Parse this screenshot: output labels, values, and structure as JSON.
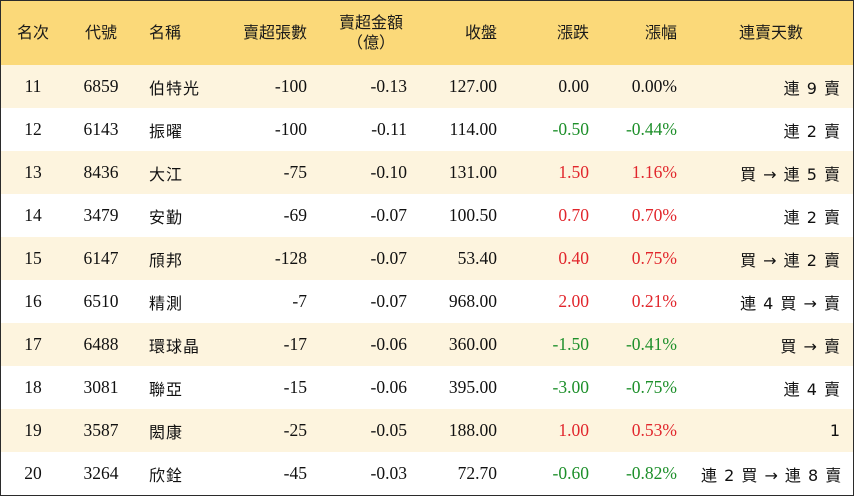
{
  "table": {
    "headers": {
      "rank": "名次",
      "code": "代號",
      "name": "名稱",
      "sell_lots": "賣超張數",
      "sell_amount_line1": "賣超金額",
      "sell_amount_line2": "（億）",
      "close": "收盤",
      "change": "漲跌",
      "change_pct": "漲幅",
      "streak": "連賣天數"
    },
    "colors": {
      "header_bg": "#fbd979",
      "odd_row_bg": "#fdf4de",
      "even_row_bg": "#ffffff",
      "up": "#e1262c",
      "down": "#1d8f2a",
      "flat": "#111111"
    },
    "rows": [
      {
        "rank": "11",
        "code": "6859",
        "name": "伯特光",
        "sell_lots": "-100",
        "sell_amount": "-0.13",
        "close": "127.00",
        "change": "0.00",
        "change_pct": "0.00%",
        "direction": "flat",
        "streak": "連 9 賣"
      },
      {
        "rank": "12",
        "code": "6143",
        "name": "振曜",
        "sell_lots": "-100",
        "sell_amount": "-0.11",
        "close": "114.00",
        "change": "-0.50",
        "change_pct": "-0.44%",
        "direction": "neg",
        "streak": "連 2 賣"
      },
      {
        "rank": "13",
        "code": "8436",
        "name": "大江",
        "sell_lots": "-75",
        "sell_amount": "-0.10",
        "close": "131.00",
        "change": "1.50",
        "change_pct": "1.16%",
        "direction": "pos",
        "streak": "買 → 連 5 賣"
      },
      {
        "rank": "14",
        "code": "3479",
        "name": "安勤",
        "sell_lots": "-69",
        "sell_amount": "-0.07",
        "close": "100.50",
        "change": "0.70",
        "change_pct": "0.70%",
        "direction": "pos",
        "streak": "連 2 賣"
      },
      {
        "rank": "15",
        "code": "6147",
        "name": "頎邦",
        "sell_lots": "-128",
        "sell_amount": "-0.07",
        "close": "53.40",
        "change": "0.40",
        "change_pct": "0.75%",
        "direction": "pos",
        "streak": "買 → 連 2 賣"
      },
      {
        "rank": "16",
        "code": "6510",
        "name": "精測",
        "sell_lots": "-7",
        "sell_amount": "-0.07",
        "close": "968.00",
        "change": "2.00",
        "change_pct": "0.21%",
        "direction": "pos",
        "streak": "連 4 買 → 賣"
      },
      {
        "rank": "17",
        "code": "6488",
        "name": "環球晶",
        "sell_lots": "-17",
        "sell_amount": "-0.06",
        "close": "360.00",
        "change": "-1.50",
        "change_pct": "-0.41%",
        "direction": "neg",
        "streak": "買 → 賣"
      },
      {
        "rank": "18",
        "code": "3081",
        "name": "聯亞",
        "sell_lots": "-15",
        "sell_amount": "-0.06",
        "close": "395.00",
        "change": "-3.00",
        "change_pct": "-0.75%",
        "direction": "neg",
        "streak": "連 4 賣"
      },
      {
        "rank": "19",
        "code": "3587",
        "name": "閎康",
        "sell_lots": "-25",
        "sell_amount": "-0.05",
        "close": "188.00",
        "change": "1.00",
        "change_pct": "0.53%",
        "direction": "pos",
        "streak": "1"
      },
      {
        "rank": "20",
        "code": "3264",
        "name": "欣銓",
        "sell_lots": "-45",
        "sell_amount": "-0.03",
        "close": "72.70",
        "change": "-0.60",
        "change_pct": "-0.82%",
        "direction": "neg",
        "streak": "連 2 買 → 連 8 賣"
      }
    ]
  }
}
